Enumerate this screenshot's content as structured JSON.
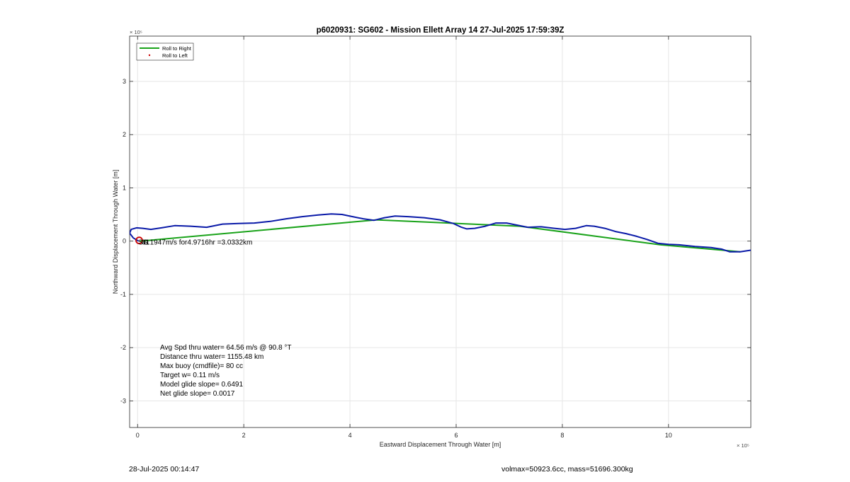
{
  "chart_data": {
    "type": "line",
    "title": "p6020931: SG602 - Mission Ellett Array 14 27-Jul-2025 17:59:39Z",
    "xlabel": "Eastward Displacement Through Water [m]",
    "ylabel": "Northward Displacement Through Water [m]",
    "x_exponent": "× 10⁵",
    "y_exponent": "× 10⁵",
    "xlim": [
      -0.15,
      11.55
    ],
    "ylim": [
      -3.5,
      3.85
    ],
    "xticks": [
      0,
      2,
      4,
      6,
      8,
      10
    ],
    "yticks": [
      -3,
      -2,
      -1,
      0,
      1,
      2,
      3
    ],
    "x_tick_labels": [
      "0",
      "2",
      "4",
      "6",
      "8",
      "10"
    ],
    "y_tick_labels": [
      "-3",
      "-2",
      "-1",
      "0",
      "1",
      "2",
      "3"
    ],
    "grid": true,
    "legend_position": "top-left",
    "legend": [
      {
        "label": "Roll to Right",
        "color": "#1aa31a",
        "style": "line"
      },
      {
        "label": "Roll to Left",
        "color": "#cc0000",
        "style": "dot"
      }
    ],
    "series": [
      {
        "name": "Roll to Right",
        "color": "#1aa31a",
        "x": [
          0.05,
          4.5,
          7.2,
          9.85,
          11.35
        ],
        "y": [
          0.0,
          0.4,
          0.28,
          -0.07,
          -0.2
        ]
      },
      {
        "color": "#0a1aa8",
        "x": [
          0.02,
          -0.08,
          -0.15,
          -0.12,
          -0.02,
          0.1,
          0.25,
          0.45,
          0.7,
          1.0,
          1.3,
          1.6,
          1.9,
          2.2,
          2.5,
          2.8,
          3.1,
          3.4,
          3.65,
          3.85,
          4.05,
          4.25,
          4.45,
          4.65,
          4.85,
          5.1,
          5.4,
          5.7,
          5.95,
          6.1,
          6.2,
          6.35,
          6.55,
          6.75,
          6.95,
          7.15,
          7.35,
          7.6,
          7.85,
          8.05,
          8.25,
          8.45,
          8.6,
          8.8,
          9.0,
          9.2,
          9.4,
          9.6,
          9.8,
          10.0,
          10.2,
          10.5,
          10.8,
          11.0,
          11.15,
          11.35,
          11.55
        ],
        "y": [
          0.0,
          0.06,
          0.15,
          0.22,
          0.25,
          0.24,
          0.22,
          0.25,
          0.29,
          0.28,
          0.26,
          0.32,
          0.33,
          0.34,
          0.37,
          0.42,
          0.46,
          0.49,
          0.51,
          0.5,
          0.46,
          0.42,
          0.39,
          0.44,
          0.47,
          0.46,
          0.44,
          0.4,
          0.33,
          0.26,
          0.23,
          0.24,
          0.28,
          0.34,
          0.34,
          0.3,
          0.26,
          0.27,
          0.24,
          0.22,
          0.24,
          0.29,
          0.28,
          0.24,
          0.18,
          0.14,
          0.09,
          0.03,
          -0.04,
          -0.06,
          -0.07,
          -0.1,
          -0.12,
          -0.15,
          -0.2,
          -0.2,
          -0.17
        ]
      }
    ],
    "start_marker": {
      "x": 0.03,
      "y": 0.0,
      "color": "#cc0000"
    },
    "start_labels": [
      "SG",
      "01"
    ],
    "track_annotation": "0.1947m/s for4.9716hr =3.0332km",
    "stats_lines": [
      "Avg Spd thru water= 64.56 m/s @  90.8 °T",
      "Distance thru water= 1155.48 km",
      "Max buoy (cmdfile)= 80 cc",
      "Target w= 0.11 m/s",
      "Model glide slope= 0.6491",
      "Net glide slope= 0.0017"
    ]
  },
  "footer": {
    "timestamp": "28-Jul-2025 00:14:47",
    "vol_mass": "volmax=50923.6cc, mass=51696.300kg"
  }
}
